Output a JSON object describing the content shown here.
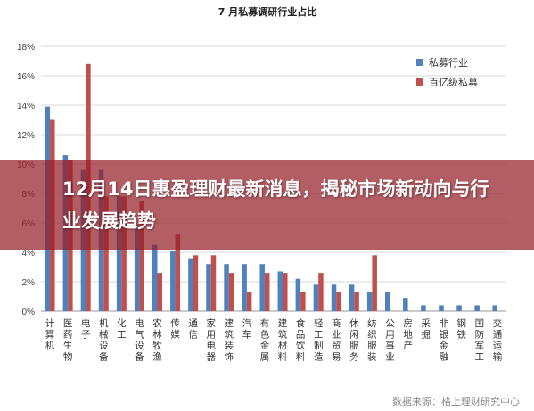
{
  "chart_data": {
    "type": "bar",
    "title": "7 月私募调研行业占比",
    "ylim": [
      0,
      18
    ],
    "yticks": [
      "0%",
      "2%",
      "4%",
      "6%",
      "8%",
      "10%",
      "12%",
      "14%",
      "16%",
      "18%"
    ],
    "grid": true,
    "legend_position": "top-right",
    "categories": [
      "计算机",
      "医药生物",
      "电子",
      "机械设备",
      "化工",
      "电气设备",
      "农林牧渔",
      "传媒",
      "通信",
      "家用电器",
      "建筑装饰",
      "汽车",
      "有色金属",
      "建筑材料",
      "食品饮料",
      "轻工制造",
      "商业贸易",
      "休闲服务",
      "纺织服装",
      "公用事业",
      "房地产",
      "采掘",
      "非银金融",
      "钢铁",
      "国防军工",
      "交通运输"
    ],
    "series": [
      {
        "name": "私募行业",
        "color": "#4f81bd",
        "values": [
          13.9,
          10.6,
          9.6,
          9.6,
          7.8,
          5.9,
          4.5,
          4.1,
          3.6,
          3.2,
          3.2,
          3.2,
          3.2,
          2.7,
          2.2,
          1.8,
          1.8,
          1.8,
          1.3,
          1.3,
          0.9,
          0.4,
          0.4,
          0.4,
          0.4,
          0.4
        ]
      },
      {
        "name": "百亿级私募",
        "color": "#c0504d",
        "values": [
          13.0,
          10.3,
          16.8,
          7.8,
          7.8,
          7.5,
          2.6,
          5.2,
          3.8,
          3.8,
          2.6,
          1.3,
          2.6,
          2.6,
          1.3,
          2.6,
          1.3,
          1.3,
          3.8,
          0,
          0,
          0,
          0,
          0,
          0,
          0
        ]
      }
    ]
  },
  "source": "数据来源：格上理财研究中心",
  "overlay": {
    "headline": "12月14日惠盈理财最新消息，揭秘市场新动向与行业发展趋势",
    "color": "#961e28"
  }
}
